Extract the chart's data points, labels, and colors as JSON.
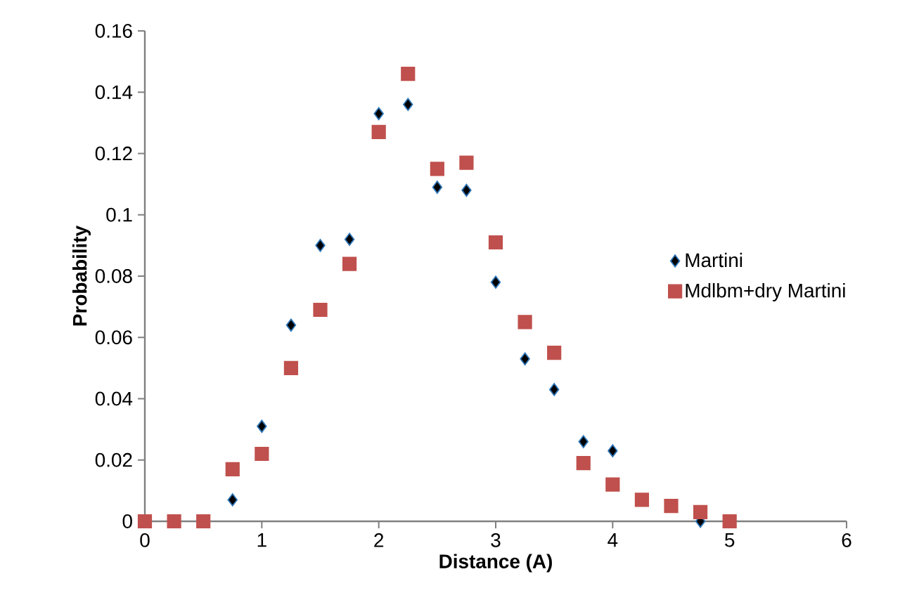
{
  "chart_data": {
    "type": "scatter",
    "xlabel": "Distance (A)",
    "ylabel": "Probability",
    "xlim": [
      0,
      6
    ],
    "xticks": [
      0,
      1,
      2,
      3,
      4,
      5,
      6
    ],
    "ylim": [
      0,
      0.16
    ],
    "yticks": [
      0,
      0.02,
      0.04,
      0.06,
      0.08,
      0.1,
      0.12,
      0.14,
      0.16
    ],
    "grid": false,
    "legend": "right",
    "x": [
      0,
      0.25,
      0.5,
      0.75,
      1,
      1.25,
      1.5,
      1.75,
      2,
      2.25,
      2.5,
      2.75,
      3,
      3.25,
      3.5,
      3.75,
      4,
      4.25,
      4.5,
      4.75,
      5
    ],
    "series": [
      {
        "name": "Martini",
        "color": "#000000",
        "marker": "diamond",
        "values": [
          null,
          null,
          null,
          0.007,
          0.031,
          0.064,
          0.09,
          0.092,
          0.133,
          0.136,
          0.109,
          0.108,
          0.078,
          0.053,
          0.043,
          0.026,
          0.023,
          null,
          null,
          0.0,
          null
        ]
      },
      {
        "name": "Mdlbm+dry Martini",
        "color": "#c0504d",
        "marker": "square",
        "values": [
          0,
          0,
          0,
          0.017,
          0.022,
          0.05,
          0.069,
          0.084,
          0.127,
          0.146,
          0.115,
          0.117,
          0.091,
          0.065,
          0.055,
          0.019,
          0.012,
          0.007,
          0.005,
          0.003,
          0
        ]
      }
    ]
  }
}
